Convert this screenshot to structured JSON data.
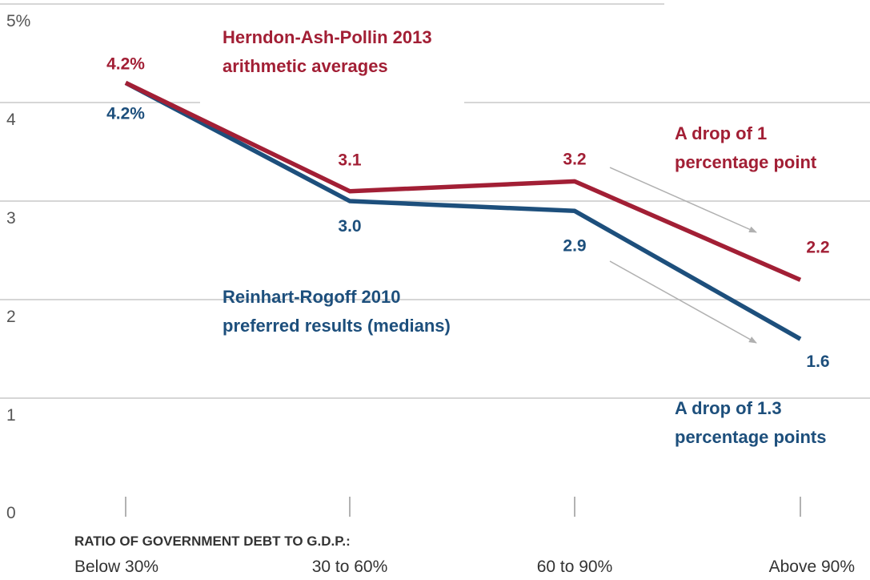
{
  "colors": {
    "red": "#a21f35",
    "blue": "#1d4f7c",
    "grid": "#c8c8c8",
    "arrow": "#b0b0b0"
  },
  "chart_data": {
    "type": "line",
    "categories": [
      "Below 30%",
      "30 to 60%",
      "60 to 90%",
      "Above 90%"
    ],
    "xlabel": "RATIO OF GOVERNMENT DEBT TO G.D.P.:",
    "ylim": [
      0,
      5
    ],
    "yticks": [
      "0",
      "1",
      "2",
      "3",
      "4",
      "5%"
    ],
    "grid": true,
    "series": [
      {
        "name_lines": [
          "Herndon-Ash-Pollin 2013",
          "arithmetic averages"
        ],
        "values": [
          4.2,
          3.1,
          3.2,
          2.2
        ],
        "labels": [
          "4.2%",
          "3.1",
          "3.2",
          "2.2"
        ],
        "color": "#a21f35"
      },
      {
        "name_lines": [
          "Reinhart-Rogoff 2010",
          "preferred results (medians)"
        ],
        "values": [
          4.2,
          3.0,
          2.9,
          1.6
        ],
        "labels": [
          "4.2%",
          "3.0",
          "2.9",
          "1.6"
        ],
        "color": "#1d4f7c"
      }
    ],
    "annotations": [
      {
        "lines": [
          "A drop of 1",
          "percentage point"
        ],
        "color": "#a21f35"
      },
      {
        "lines": [
          "A drop of 1.3",
          "percentage points"
        ],
        "color": "#1d4f7c"
      }
    ]
  }
}
